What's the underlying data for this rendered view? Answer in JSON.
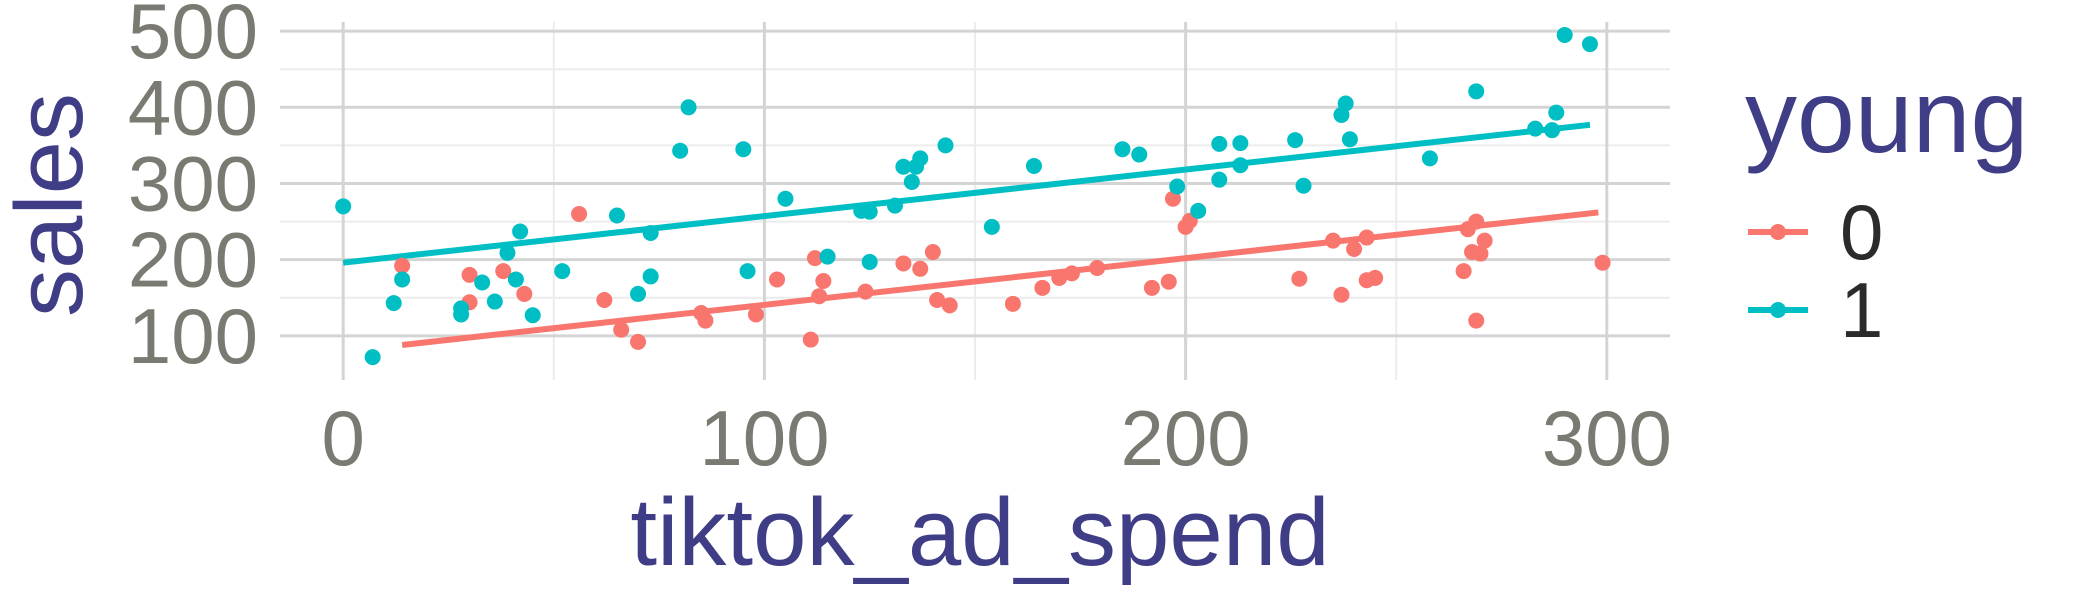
{
  "chart_data": {
    "type": "scatter",
    "xlabel": "tiktok_ad_spend",
    "ylabel": "sales",
    "xlim": [
      -15,
      315
    ],
    "ylim": [
      42,
      512
    ],
    "x_ticks": [
      0,
      100,
      200,
      300
    ],
    "x_tick_labels": [
      "0",
      "100",
      "200",
      "300"
    ],
    "y_ticks": [
      100,
      200,
      300,
      400,
      500
    ],
    "y_tick_labels": [
      "100",
      "200",
      "300",
      "400",
      "500"
    ],
    "grid": true,
    "legend": {
      "title": "young",
      "placement": "right"
    },
    "series": [
      {
        "name": "0",
        "color": "#f8766d",
        "points": [
          [
            14,
            192
          ],
          [
            30,
            180
          ],
          [
            30,
            144
          ],
          [
            38,
            185
          ],
          [
            43,
            155
          ],
          [
            56,
            260
          ],
          [
            62,
            147
          ],
          [
            66,
            108
          ],
          [
            70,
            92
          ],
          [
            85,
            130
          ],
          [
            86,
            120
          ],
          [
            98,
            128
          ],
          [
            103,
            174
          ],
          [
            111,
            95
          ],
          [
            113,
            152
          ],
          [
            114,
            172
          ],
          [
            112,
            202
          ],
          [
            124,
            158
          ],
          [
            133,
            195
          ],
          [
            137,
            188
          ],
          [
            140,
            210
          ],
          [
            141,
            147
          ],
          [
            144,
            140
          ],
          [
            159,
            142
          ],
          [
            166,
            163
          ],
          [
            170,
            176
          ],
          [
            173,
            182
          ],
          [
            179,
            189
          ],
          [
            192,
            163
          ],
          [
            196,
            171
          ],
          [
            197,
            280
          ],
          [
            200,
            243
          ],
          [
            201,
            251
          ],
          [
            227,
            175
          ],
          [
            235,
            225
          ],
          [
            237,
            154
          ],
          [
            240,
            214
          ],
          [
            243,
            229
          ],
          [
            243,
            173
          ],
          [
            245,
            176
          ],
          [
            266,
            185
          ],
          [
            267,
            240
          ],
          [
            268,
            210
          ],
          [
            269,
            250
          ],
          [
            269,
            120
          ],
          [
            270,
            208
          ],
          [
            271,
            225
          ],
          [
            299,
            196
          ]
        ],
        "trend": {
          "x": [
            14,
            298
          ],
          "y": [
            88,
            262
          ]
        }
      },
      {
        "name": "1",
        "color": "#00bfc4",
        "points": [
          [
            0,
            270
          ],
          [
            7,
            72
          ],
          [
            12,
            143
          ],
          [
            14,
            174
          ],
          [
            28,
            128
          ],
          [
            28,
            136
          ],
          [
            33,
            170
          ],
          [
            36,
            145
          ],
          [
            39,
            209
          ],
          [
            41,
            174
          ],
          [
            42,
            237
          ],
          [
            45,
            127
          ],
          [
            52,
            185
          ],
          [
            65,
            258
          ],
          [
            70,
            155
          ],
          [
            73,
            178
          ],
          [
            73,
            235
          ],
          [
            80,
            343
          ],
          [
            82,
            400
          ],
          [
            95,
            345
          ],
          [
            96,
            185
          ],
          [
            105,
            280
          ],
          [
            115,
            204
          ],
          [
            123,
            264
          ],
          [
            125,
            263
          ],
          [
            125,
            197
          ],
          [
            131,
            271
          ],
          [
            133,
            322
          ],
          [
            135,
            302
          ],
          [
            136,
            322
          ],
          [
            137,
            333
          ],
          [
            143,
            350
          ],
          [
            154,
            243
          ],
          [
            164,
            323
          ],
          [
            185,
            345
          ],
          [
            189,
            338
          ],
          [
            198,
            296
          ],
          [
            203,
            264
          ],
          [
            208,
            352
          ],
          [
            208,
            305
          ],
          [
            213,
            353
          ],
          [
            213,
            324
          ],
          [
            226,
            357
          ],
          [
            228,
            297
          ],
          [
            237,
            390
          ],
          [
            238,
            405
          ],
          [
            239,
            358
          ],
          [
            258,
            333
          ],
          [
            269,
            421
          ],
          [
            283,
            372
          ],
          [
            287,
            370
          ],
          [
            288,
            393
          ],
          [
            290,
            495
          ],
          [
            296,
            483
          ]
        ],
        "trend": {
          "x": [
            0,
            296
          ],
          "y": [
            196,
            377
          ]
        }
      }
    ]
  }
}
